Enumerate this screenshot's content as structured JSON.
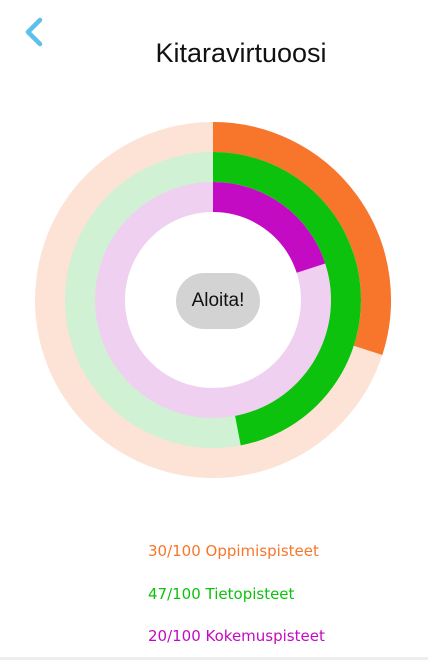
{
  "header": {
    "title": "Kitaravirtuoosi",
    "back_icon": "chevron-left-icon",
    "back_color": "#5bc0eb"
  },
  "start_button": {
    "label": "Aloita!",
    "color": "#d3d3d3"
  },
  "progress": [
    {
      "key": "oppimis",
      "value": 30,
      "max": 100,
      "label": "30/100 Oppimispisteet",
      "color": "#f7762b",
      "track_color": "#fce3d5"
    },
    {
      "key": "tieto",
      "value": 47,
      "max": 100,
      "label": "47/100 Tietopisteet",
      "color": "#0dc20d",
      "track_color": "#d0f1d3"
    },
    {
      "key": "kokemus",
      "value": 20,
      "max": 100,
      "label": "20/100 Kokemuspisteet",
      "color": "#c20bc2",
      "track_color": "#f0d0f0"
    }
  ]
}
